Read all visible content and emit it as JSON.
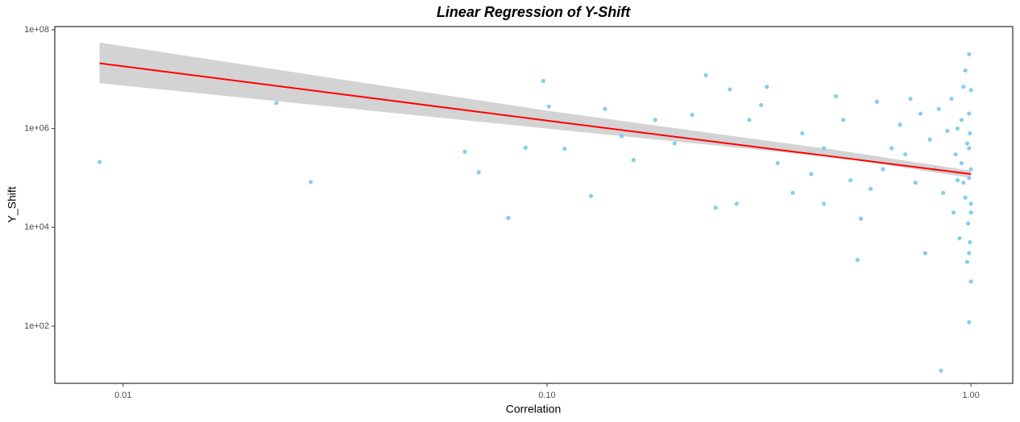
{
  "chart_data": {
    "type": "scatter",
    "title": "Linear Regression of Y-Shift",
    "x_label": "Correlation",
    "y_label": "Y_Shift",
    "log_x": true,
    "log_y": true,
    "grid": false,
    "xlim": [
      0.0069,
      1.255
    ],
    "ylim": [
      6.95,
      116000000.0
    ],
    "xticks": [
      {
        "value": 0.01,
        "label": "0.01"
      },
      {
        "value": 0.1,
        "label": "0.10"
      },
      {
        "value": 1,
        "label": "1.00"
      }
    ],
    "yticks": [
      {
        "value": 100,
        "label": "1e+02"
      },
      {
        "value": 10000,
        "label": "1e+04"
      },
      {
        "value": 1000000,
        "label": "1e+06"
      },
      {
        "value": 100000000,
        "label": "1e+08"
      }
    ],
    "band": {
      "color": "#d3d3d3",
      "x": [
        0.0088,
        0.1,
        0.5,
        1.0
      ],
      "upper": [
        55000000,
        2300000,
        350000,
        140000
      ],
      "lower": [
        8300000,
        1000000,
        250000,
        100000
      ]
    },
    "fit": {
      "color": "#ff0000",
      "x": [
        0.0088,
        0.1,
        1.0
      ],
      "values": [
        21000000,
        1450000,
        120000
      ]
    },
    "points": {
      "color": "#87ceeb",
      "x": [
        0.0088,
        0.023,
        0.0277,
        0.064,
        0.069,
        0.081,
        0.089,
        0.098,
        0.101,
        0.11,
        0.127,
        0.137,
        0.237,
        0.27,
        0.33,
        0.54,
        0.85,
        0.99,
        0.99,
        0.6,
        0.62,
        0.65,
        0.68,
        0.7,
        0.72,
        0.74,
        0.76,
        0.78,
        0.8,
        0.82,
        0.84,
        0.86,
        0.88,
        0.9,
        0.91,
        0.92,
        0.93,
        0.94,
        0.95,
        0.96,
        0.97,
        0.98,
        0.985,
        0.99,
        0.99,
        0.995,
        1.0,
        1.0,
        1.0,
        1.0,
        0.97,
        0.98,
        0.96,
        0.99,
        0.95,
        0.93,
        0.995,
        1.0,
        0.99,
        0.3,
        0.35,
        0.4,
        0.45,
        0.5,
        0.42,
        0.38,
        0.28,
        0.25,
        0.55,
        0.58,
        0.2,
        0.18,
        0.15,
        0.16,
        0.22,
        0.32,
        0.48,
        0.52,
        0.45
      ],
      "values": [
        210000,
        3300000,
        83000,
        340000,
        130000,
        15500,
        410000,
        9200000,
        2800000,
        390000,
        43000,
        2500000,
        12000000,
        6200000,
        7000000,
        2200,
        12.6,
        120,
        32000000,
        3500000,
        150000,
        400000,
        1200000,
        300000,
        4000000,
        80000,
        2000000,
        3000,
        600000,
        150000,
        2500000,
        50000,
        900000,
        4000000,
        20000,
        300000,
        1000000,
        6000,
        200000,
        7000000,
        40000,
        500000,
        12000,
        2000000,
        3000,
        800000,
        30000,
        150000,
        6000000,
        800,
        15000000,
        2000,
        80000,
        400000,
        1500000,
        90000,
        5000,
        20000,
        100000,
        1500000,
        200000,
        800000,
        400000,
        1500000,
        120000,
        50000,
        30000,
        25000,
        15000,
        60000,
        500000,
        1500000,
        700000,
        230000,
        1900000,
        3000000,
        4500000,
        90000,
        30000
      ]
    }
  }
}
